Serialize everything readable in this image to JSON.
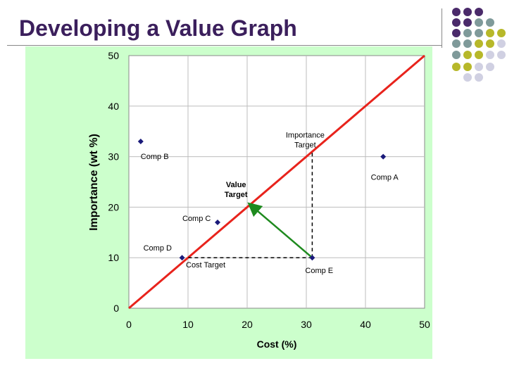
{
  "slide": {
    "title": "Developing a Value Graph"
  },
  "decoration": {
    "dot_colors": {
      "purple": "#4a2a6a",
      "teal": "#7f9a9a",
      "olive": "#b7b82a",
      "lavender": "#d0d0e2"
    }
  },
  "chart_data": {
    "type": "scatter",
    "title": "",
    "xlabel": "Cost (%)",
    "ylabel": "Importance (wt %)",
    "xlim": [
      0,
      50
    ],
    "ylim": [
      0,
      50
    ],
    "xticks": [
      0,
      10,
      20,
      30,
      40,
      50
    ],
    "yticks": [
      0,
      10,
      20,
      30,
      40,
      50
    ],
    "grid": true,
    "colors": {
      "background": "#ccffcc",
      "plot_area": "#ffffff",
      "point": "#1a1a7a",
      "diagonal": "#e8231c",
      "arrow": "#1e8a1e",
      "guide": "#000000"
    },
    "points": [
      {
        "name": "Comp A",
        "x": 43,
        "y": 30
      },
      {
        "name": "Comp B",
        "x": 2,
        "y": 33
      },
      {
        "name": "Comp C",
        "x": 15,
        "y": 17
      },
      {
        "name": "Comp D",
        "x": 9,
        "y": 10
      },
      {
        "name": "Comp E",
        "x": 31,
        "y": 10
      }
    ],
    "diagonal": {
      "from": [
        0,
        0
      ],
      "to": [
        50,
        50
      ]
    },
    "value_arrow": {
      "from": [
        31,
        10
      ],
      "to": [
        20.5,
        20.5
      ]
    },
    "guides": [
      {
        "from": [
          31,
          10
        ],
        "to": [
          31,
          31
        ]
      },
      {
        "from": [
          31,
          10
        ],
        "to": [
          10,
          10
        ]
      }
    ],
    "annotations": [
      {
        "id": "importance-target",
        "lines": [
          "Importance",
          "Target"
        ],
        "x": 31,
        "y": 31
      },
      {
        "id": "value-target",
        "lines": [
          "Value",
          "Target"
        ],
        "x": 20.5,
        "y": 20.5
      },
      {
        "id": "cost-target",
        "lines": [
          "Cost Target"
        ],
        "x": 10,
        "y": 10
      }
    ]
  }
}
